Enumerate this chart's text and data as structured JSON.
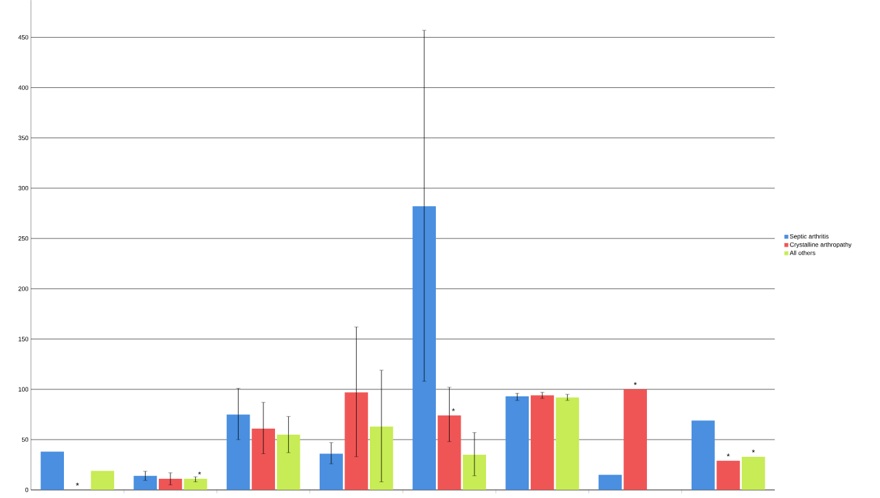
{
  "chart_data": {
    "type": "bar",
    "categories": [
      null,
      null,
      null,
      null,
      null,
      null,
      null,
      null
    ],
    "series": [
      {
        "name": "Septic arthritis",
        "color": "#4a8fe0",
        "values": [
          38,
          14,
          75,
          36,
          282,
          93,
          15,
          69
        ],
        "errors": [
          null,
          [
            9.5,
            18.5
          ],
          [
            50,
            101
          ],
          [
            26,
            47
          ],
          [
            108,
            457
          ],
          [
            89,
            96
          ],
          null,
          null
        ],
        "value_labels": [
          null,
          null,
          null,
          null,
          null,
          null,
          null,
          null
        ]
      },
      {
        "name": "Crystalline arthropathy",
        "color": "#f05555",
        "values": [
          0,
          11,
          61,
          97,
          74,
          94,
          100,
          29
        ],
        "errors": [
          null,
          [
            5,
            17
          ],
          [
            36,
            87
          ],
          [
            33,
            162
          ],
          [
            48,
            102
          ],
          [
            91,
            97
          ],
          null,
          null
        ],
        "value_labels": [
          "*",
          null,
          null,
          null,
          "*",
          null,
          "*",
          "*"
        ]
      },
      {
        "name": "All others",
        "color": "#c8ec55",
        "values": [
          19,
          11,
          55,
          63,
          35,
          92,
          null,
          33
        ],
        "errors": [
          null,
          [
            8,
            13
          ],
          [
            37,
            73
          ],
          [
            8,
            119
          ],
          [
            14,
            57
          ],
          [
            89,
            95
          ],
          null,
          null
        ],
        "value_labels": [
          null,
          "*",
          null,
          null,
          null,
          null,
          null,
          "*"
        ]
      }
    ],
    "ylim": [
      0,
      487
    ],
    "yticks": [
      0,
      50,
      100,
      150,
      200,
      250,
      300,
      350,
      400,
      450
    ],
    "grid": "y",
    "legend": "right"
  }
}
